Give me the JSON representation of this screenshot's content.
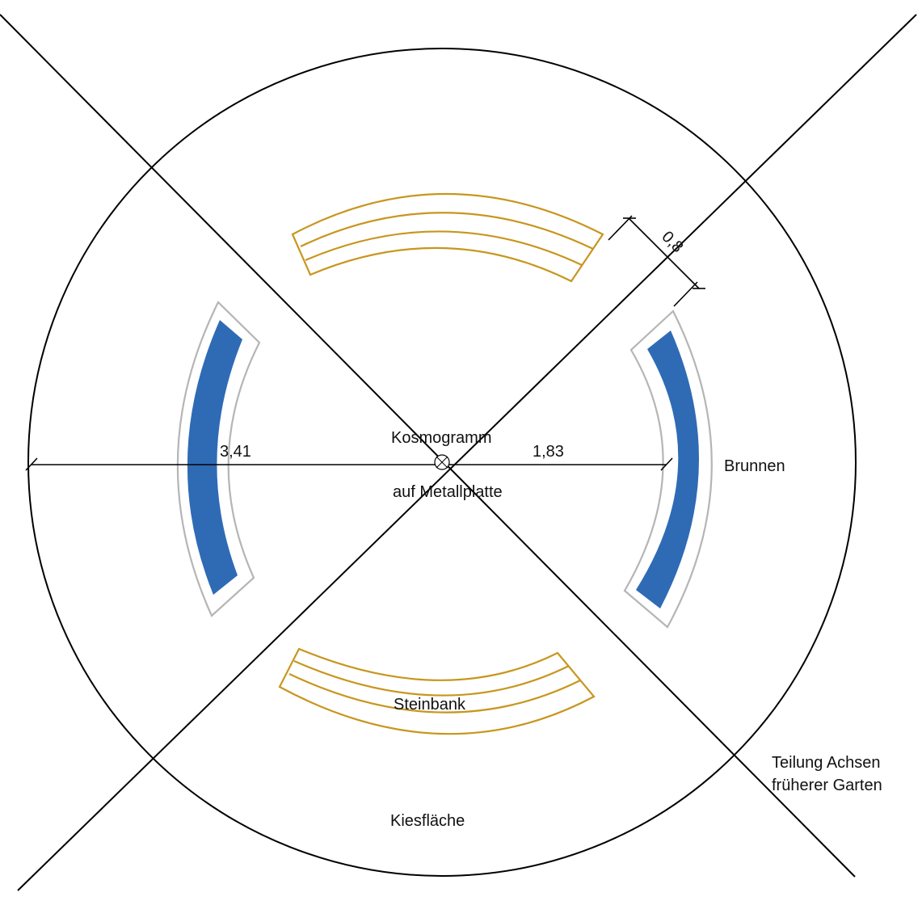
{
  "labels": {
    "kosmogramm_line1": "Kosmogramm",
    "kosmogramm_line2": "auf Metallplatte",
    "brunnen": "Brunnen",
    "steinbank": "Steinbank",
    "kiesflaeche": "Kiesfläche",
    "teilung_line1": "Teilung Achsen",
    "teilung_line2": "früherer Garten"
  },
  "dimensions": {
    "radius_outer": "3,41",
    "radius_fountain": "1,83",
    "fountain_width": "0,8"
  },
  "colors": {
    "water": "#2f6bb5",
    "bench": "#c8961e",
    "fountain_rim": "#b5b5b5",
    "lines": "#000000"
  }
}
